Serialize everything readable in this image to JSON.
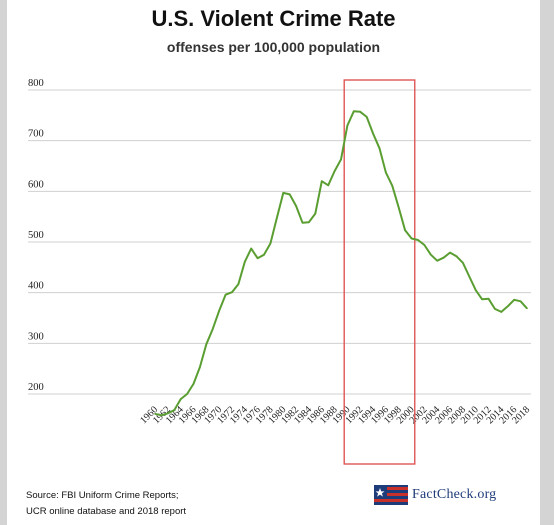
{
  "header": {
    "title": "U.S. Violent Crime Rate",
    "subtitle": "offenses per 100,000 population"
  },
  "source": {
    "line1": "Source: FBI Uniform Crime Reports;",
    "line2": "UCR online database and 2018 report"
  },
  "logo": {
    "text": "FactCheck.org"
  },
  "colors": {
    "line": "#5a9e32",
    "highlight": "#e05555",
    "grid": "#d0d0d0",
    "logo_blue": "#1f3c7a",
    "logo_red": "#c8302a"
  },
  "chart_data": {
    "type": "line",
    "title": "U.S. Violent Crime Rate",
    "subtitle": "offenses per 100,000 population",
    "xlabel": "",
    "ylabel": "",
    "ylim": [
      150,
      820
    ],
    "grid": "horizontal",
    "y_ticks": [
      200,
      300,
      400,
      500,
      600,
      700,
      800
    ],
    "x_ticks": [
      "1960",
      "1962",
      "1964",
      "1966",
      "1968",
      "1970",
      "1972",
      "1974",
      "1976",
      "1978",
      "1980",
      "1982",
      "1984",
      "1986",
      "1988",
      "1990",
      "1992",
      "1994",
      "1996",
      "1998",
      "2000",
      "2002",
      "2004",
      "2006",
      "2008",
      "2010",
      "2012",
      "2014",
      "2016",
      "2018"
    ],
    "x": [
      1960,
      1961,
      1962,
      1963,
      1964,
      1965,
      1966,
      1967,
      1968,
      1969,
      1970,
      1971,
      1972,
      1973,
      1974,
      1975,
      1976,
      1977,
      1978,
      1979,
      1980,
      1981,
      1982,
      1983,
      1984,
      1985,
      1986,
      1987,
      1988,
      1989,
      1990,
      1991,
      1992,
      1993,
      1994,
      1995,
      1996,
      1997,
      1998,
      1999,
      2000,
      2001,
      2002,
      2003,
      2004,
      2005,
      2006,
      2007,
      2008,
      2009,
      2010,
      2011,
      2012,
      2013,
      2014,
      2015,
      2016,
      2017,
      2018
    ],
    "series": [
      {
        "values": [
          161,
          158,
          162,
          168,
          190,
          200,
          220,
          253,
          298,
          328,
          364,
          396,
          401,
          417,
          461,
          487,
          468,
          475,
          497,
          548,
          597,
          594,
          571,
          538,
          539,
          556,
          620,
          612,
          640,
          663,
          730,
          758,
          757,
          747,
          714,
          685,
          637,
          611,
          568,
          523,
          507,
          504,
          494,
          475,
          463,
          469,
          479,
          472,
          459,
          432,
          405,
          387,
          388,
          368,
          362,
          373,
          386,
          383,
          369
        ]
      }
    ],
    "annotations": [
      {
        "type": "highlight_box",
        "x_range": [
          1989.5,
          2000.5
        ],
        "color": "#e05555"
      }
    ]
  }
}
